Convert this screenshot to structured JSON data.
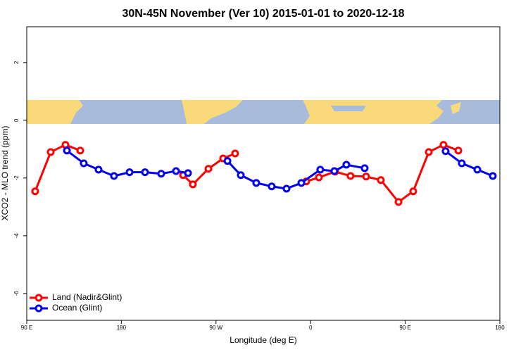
{
  "chart_data": {
    "type": "line",
    "title": "30N-45N November (Ver 10)   2015-01-01 to 2020-12-18",
    "x_label": "Longitude (deg E)",
    "y_label": "XCO2 - MLO trend (ppm)",
    "xlim": [
      90,
      540
    ],
    "xticks": [
      {
        "value": 90,
        "label": "90 E"
      },
      180,
      {
        "value": 270,
        "label": "90 W"
      },
      {
        "value": 360,
        "label": "0"
      },
      {
        "value": 450,
        "label": "90 E"
      },
      {
        "value": 540,
        "label": "180"
      }
    ],
    "ylim": [
      -6.93,
      3.24
    ],
    "yticks": [
      -6,
      -4,
      -2,
      0,
      2
    ],
    "legend": "bottom-left",
    "series": [
      {
        "name": "Land (Nadir&Glint)",
        "color": "#ff0000",
        "x": [
          98,
          112.8,
          126.8,
          140.9,
          null,
          238.7,
          248,
          262.8,
          276.8,
          288.2,
          null,
          355.8,
          367.9,
          383.3,
          398,
          412.8,
          426.8,
          443.6,
          457.6,
          472.4,
          486.4,
          500.5
        ],
        "values": [
          -2.46,
          -1.1,
          -0.85,
          -1.05,
          null,
          -1.9,
          -2.22,
          -1.68,
          -1.32,
          -1.15,
          null,
          -2.12,
          -1.98,
          -1.78,
          -1.93,
          -1.95,
          -2.07,
          -2.83,
          -2.46,
          -1.1,
          -0.85,
          -1.05
        ]
      },
      {
        "name": "Ocean (Glint)",
        "color": "#0000ee",
        "x": [
          128.2,
          144.2,
          158.3,
          173,
          187.8,
          202.5,
          217.9,
          232,
          243.4,
          null,
          280.9,
          293.6,
          308.3,
          323,
          337.1,
          351.2,
          369.2,
          382.6,
          394,
          411.4,
          null,
          488.4,
          503.8,
          518.6,
          533.3
        ],
        "values": [
          -1.05,
          -1.49,
          -1.71,
          -1.93,
          -1.8,
          -1.8,
          -1.85,
          -1.76,
          -1.83,
          null,
          -1.41,
          -1.9,
          -2.17,
          -2.29,
          -2.37,
          -2.17,
          -1.71,
          -1.76,
          -1.54,
          -1.66,
          null,
          -1.07,
          -1.49,
          -1.71,
          -1.93
        ]
      }
    ]
  }
}
